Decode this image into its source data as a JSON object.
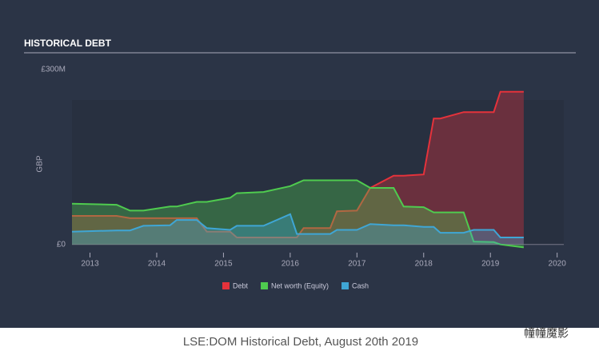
{
  "chart_data": {
    "type": "area",
    "title": "HISTORICAL DEBT",
    "ylabel": "GBP",
    "caption": "LSE:DOM Historical Debt, August 20th 2019",
    "watermark": "幢幢魔影",
    "x": [
      2012.73,
      2013.4,
      2013.6,
      2013.8,
      2014.2,
      2014.3,
      2014.6,
      2014.75,
      2015.1,
      2015.2,
      2015.6,
      2016.0,
      2016.1,
      2016.2,
      2016.6,
      2016.7,
      2017.0,
      2017.2,
      2017.55,
      2017.7,
      2018.0,
      2018.15,
      2018.25,
      2018.6,
      2018.75,
      2019.05,
      2019.15,
      2019.5
    ],
    "series": [
      {
        "name": "Debt",
        "color": "#e5323b",
        "values": [
          49,
          49,
          45,
          45,
          45,
          45,
          45,
          22,
          22,
          12,
          12,
          12,
          12,
          28,
          28,
          57,
          58,
          97,
          118,
          118,
          120,
          216,
          216,
          227,
          227,
          227,
          262,
          262
        ]
      },
      {
        "name": "Net worth (Equity)",
        "color": "#4fcb4f",
        "values": [
          70,
          68,
          58,
          58,
          65,
          65,
          73,
          73,
          80,
          88,
          90,
          100,
          105,
          110,
          110,
          110,
          110,
          97,
          97,
          65,
          64,
          55,
          55,
          55,
          5,
          4,
          0,
          -5
        ]
      },
      {
        "name": "Cash",
        "color": "#3fa6d5",
        "values": [
          22,
          24,
          24,
          32,
          33,
          42,
          42,
          28,
          25,
          32,
          32,
          52,
          18,
          18,
          18,
          25,
          25,
          35,
          33,
          33,
          30,
          30,
          20,
          20,
          25,
          25,
          12,
          12
        ]
      }
    ],
    "xlim": [
      2012.73,
      2020.1
    ],
    "xticks": [
      2013,
      2014,
      2015,
      2016,
      2017,
      2018,
      2019,
      2020
    ],
    "ylim": [
      -10,
      300
    ],
    "yticks": [
      {
        "value": 0,
        "label": "£0"
      },
      {
        "value": 300,
        "label": "£300M"
      }
    ],
    "legend": "bottom"
  }
}
